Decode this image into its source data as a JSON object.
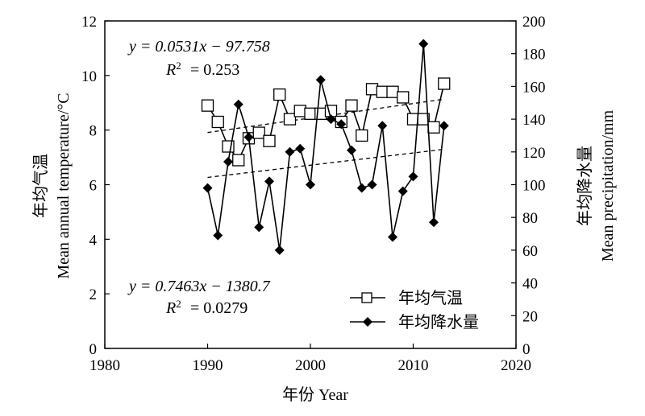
{
  "chart_data": {
    "type": "line",
    "xlabel": "年份 Year",
    "ylabel_left": [
      "年均气温",
      "Mean annual temperature/°C"
    ],
    "ylabel_right": [
      "年均降水量",
      "Mean precipitation/mm"
    ],
    "xlim": [
      1980,
      2020
    ],
    "ylim_left": [
      0,
      12
    ],
    "ylim_right": [
      0,
      200
    ],
    "x_ticks": [
      "1980",
      "1990",
      "2000",
      "2010",
      "2020"
    ],
    "y_left_ticks": [
      "0",
      "2",
      "4",
      "6",
      "8",
      "10",
      "12"
    ],
    "y_right_ticks": [
      "0",
      "20",
      "40",
      "60",
      "80",
      "100",
      "120",
      "140",
      "160",
      "180",
      "200"
    ],
    "series": [
      {
        "name": "年均气温",
        "axis": "left",
        "marker": "square-open",
        "x": [
          1990,
          1991,
          1992,
          1993,
          1994,
          1995,
          1996,
          1997,
          1998,
          1999,
          2000,
          2001,
          2002,
          2003,
          2004,
          2005,
          2006,
          2007,
          2008,
          2009,
          2010,
          2011,
          2012,
          2013
        ],
        "values": [
          8.9,
          8.3,
          7.4,
          6.9,
          7.7,
          7.9,
          7.6,
          9.3,
          8.4,
          8.7,
          8.6,
          8.6,
          8.7,
          8.3,
          8.9,
          7.8,
          9.5,
          9.4,
          9.4,
          9.2,
          8.4,
          8.4,
          8.1,
          9.7
        ]
      },
      {
        "name": "年均降水量",
        "axis": "right",
        "marker": "diamond-filled",
        "x": [
          1990,
          1991,
          1992,
          1993,
          1994,
          1995,
          1996,
          1997,
          1998,
          1999,
          2000,
          2001,
          2002,
          2003,
          2004,
          2005,
          2006,
          2007,
          2008,
          2009,
          2010,
          2011,
          2012,
          2013
        ],
        "values": [
          98,
          69,
          114,
          149,
          129,
          74,
          102,
          60,
          120,
          122,
          100,
          164,
          140,
          137,
          121,
          98,
          100,
          136,
          68,
          96,
          105,
          186,
          77,
          136
        ]
      }
    ],
    "trendlines": [
      {
        "series": "年均气温",
        "axis": "left",
        "slope": 0.0531,
        "intercept": -97.758
      },
      {
        "series": "年均降水量",
        "axis": "right",
        "slope": 0.7463,
        "intercept": -1380.7
      }
    ],
    "annotations": {
      "temp_equation": "y = 0.0531x −  97.758",
      "temp_r2_value": "= 0.253",
      "precip_equation": "y = 0.7463x −  1380.7",
      "precip_r2_value": "= 0.0279"
    },
    "grid": false,
    "legend_position": "bottom-right"
  }
}
